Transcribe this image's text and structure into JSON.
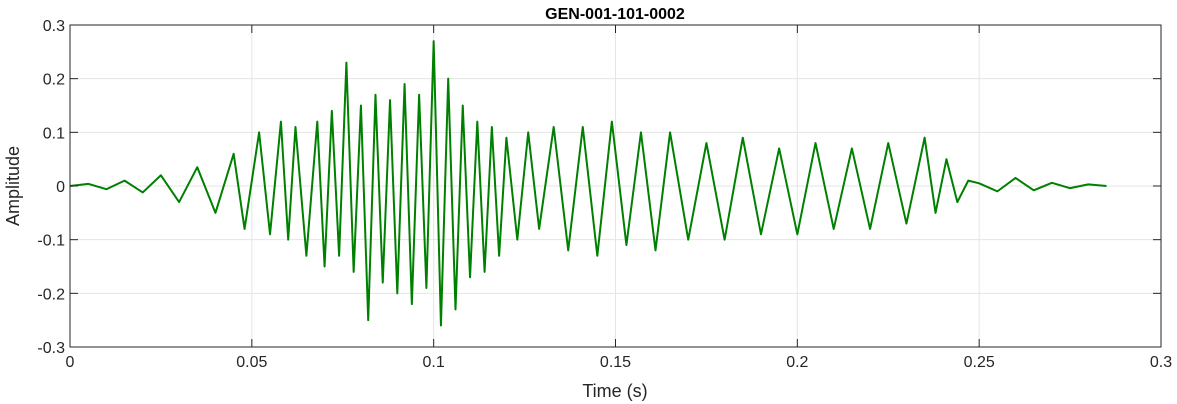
{
  "chart_data": {
    "type": "line",
    "title": "GEN-001-101-0002",
    "xlabel": "Time (s)",
    "ylabel": "Amplitude",
    "xlim": [
      0,
      0.3
    ],
    "ylim": [
      -0.3,
      0.3
    ],
    "xticks": [
      0,
      0.05,
      0.1,
      0.15,
      0.2,
      0.25,
      0.3
    ],
    "xtick_labels": [
      "0",
      "0.05",
      "0.1",
      "0.15",
      "0.2",
      "0.25",
      "0.3"
    ],
    "yticks": [
      -0.3,
      -0.2,
      -0.1,
      0,
      0.1,
      0.2,
      0.3
    ],
    "ytick_labels": [
      "-0.3",
      "-0.2",
      "-0.1",
      "0",
      "0.1",
      "0.2",
      "0.3"
    ],
    "grid": true,
    "series": [
      {
        "color": "#008000",
        "x": [
          0.0,
          0.005,
          0.01,
          0.015,
          0.02,
          0.025,
          0.03,
          0.035,
          0.04,
          0.045,
          0.048,
          0.052,
          0.055,
          0.058,
          0.06,
          0.062,
          0.065,
          0.068,
          0.07,
          0.072,
          0.074,
          0.076,
          0.078,
          0.08,
          0.082,
          0.084,
          0.086,
          0.088,
          0.09,
          0.092,
          0.094,
          0.096,
          0.098,
          0.1,
          0.102,
          0.104,
          0.106,
          0.108,
          0.11,
          0.112,
          0.114,
          0.116,
          0.118,
          0.12,
          0.123,
          0.126,
          0.129,
          0.133,
          0.137,
          0.141,
          0.145,
          0.149,
          0.153,
          0.157,
          0.161,
          0.165,
          0.17,
          0.175,
          0.18,
          0.185,
          0.19,
          0.195,
          0.2,
          0.205,
          0.21,
          0.215,
          0.22,
          0.225,
          0.23,
          0.235,
          0.238,
          0.241,
          0.244,
          0.247,
          0.25,
          0.255,
          0.26,
          0.265,
          0.27,
          0.275,
          0.28,
          0.285
        ],
        "y": [
          0.0,
          0.004,
          -0.006,
          0.01,
          -0.012,
          0.02,
          -0.03,
          0.035,
          -0.05,
          0.06,
          -0.08,
          0.1,
          -0.09,
          0.12,
          -0.1,
          0.11,
          -0.13,
          0.12,
          -0.15,
          0.14,
          -0.13,
          0.23,
          -0.16,
          0.15,
          -0.25,
          0.17,
          -0.18,
          0.16,
          -0.2,
          0.19,
          -0.22,
          0.17,
          -0.19,
          0.27,
          -0.26,
          0.2,
          -0.23,
          0.15,
          -0.17,
          0.12,
          -0.16,
          0.11,
          -0.13,
          0.09,
          -0.1,
          0.1,
          -0.08,
          0.11,
          -0.12,
          0.11,
          -0.13,
          0.12,
          -0.11,
          0.1,
          -0.12,
          0.1,
          -0.1,
          0.08,
          -0.1,
          0.09,
          -0.09,
          0.07,
          -0.09,
          0.08,
          -0.08,
          0.07,
          -0.08,
          0.08,
          -0.07,
          0.09,
          -0.05,
          0.05,
          -0.03,
          0.01,
          0.005,
          -0.01,
          0.015,
          -0.008,
          0.006,
          -0.004,
          0.003,
          0.0
        ]
      }
    ]
  }
}
